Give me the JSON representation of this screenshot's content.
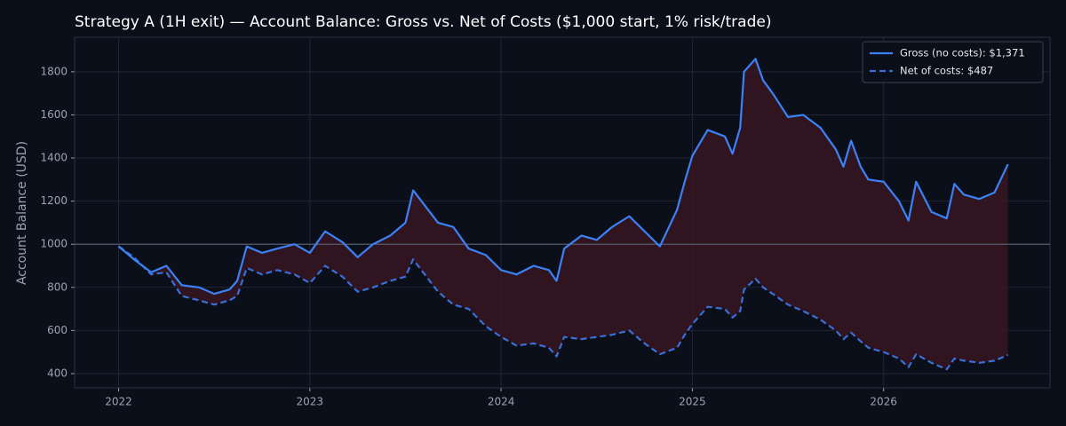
{
  "chart_data": {
    "type": "line",
    "title": "Strategy A (1H exit) — Account Balance: Gross vs. Net of Costs ($1,000 start, 1% risk/trade)",
    "y_label": "Account Balance (USD)",
    "x": [
      2022.0,
      2022.08,
      2022.17,
      2022.25,
      2022.33,
      2022.42,
      2022.5,
      2022.58,
      2022.62,
      2022.67,
      2022.75,
      2022.83,
      2022.92,
      2023.0,
      2023.08,
      2023.17,
      2023.25,
      2023.33,
      2023.42,
      2023.5,
      2023.54,
      2023.67,
      2023.75,
      2023.83,
      2023.92,
      2024.0,
      2024.08,
      2024.17,
      2024.25,
      2024.29,
      2024.33,
      2024.42,
      2024.5,
      2024.58,
      2024.67,
      2024.75,
      2024.83,
      2024.92,
      2024.96,
      2025.0,
      2025.08,
      2025.17,
      2025.21,
      2025.25,
      2025.27,
      2025.33,
      2025.37,
      2025.42,
      2025.5,
      2025.58,
      2025.67,
      2025.75,
      2025.79,
      2025.83,
      2025.88,
      2025.92,
      2026.0,
      2026.08,
      2026.13,
      2026.17,
      2026.25,
      2026.33,
      2026.37,
      2026.42,
      2026.5,
      2026.58,
      2026.65
    ],
    "series": [
      {
        "name": "Gross (no costs): $1,371",
        "color": "#3b82f6",
        "style": "solid",
        "values": [
          990,
          930,
          870,
          900,
          810,
          800,
          770,
          790,
          830,
          990,
          960,
          980,
          1000,
          960,
          1060,
          1010,
          940,
          1000,
          1040,
          1100,
          1250,
          1100,
          1080,
          980,
          950,
          880,
          860,
          900,
          880,
          830,
          980,
          1040,
          1020,
          1080,
          1130,
          1060,
          990,
          1160,
          1290,
          1410,
          1530,
          1500,
          1420,
          1540,
          1800,
          1860,
          1760,
          1700,
          1590,
          1600,
          1540,
          1440,
          1360,
          1480,
          1360,
          1300,
          1290,
          1200,
          1110,
          1290,
          1150,
          1120,
          1280,
          1230,
          1210,
          1240,
          1371
        ]
      },
      {
        "name": "Net of costs: $487",
        "color": "#3a6fd8",
        "style": "dashed",
        "values": [
          990,
          940,
          860,
          870,
          760,
          740,
          720,
          740,
          760,
          890,
          860,
          880,
          860,
          820,
          900,
          850,
          780,
          800,
          830,
          850,
          930,
          780,
          720,
          700,
          620,
          570,
          530,
          540,
          520,
          480,
          570,
          560,
          570,
          580,
          600,
          540,
          490,
          520,
          580,
          630,
          710,
          700,
          660,
          690,
          790,
          840,
          800,
          770,
          720,
          690,
          650,
          600,
          560,
          590,
          550,
          520,
          500,
          470,
          430,
          490,
          450,
          420,
          470,
          460,
          450,
          460,
          487
        ]
      }
    ],
    "fill_between": true,
    "fill_color": "#3a1520",
    "hline": 1000,
    "xlim": [
      2021.77,
      2026.87
    ],
    "xticks": [
      2022,
      2023,
      2024,
      2025,
      2026
    ],
    "ylim": [
      334,
      1960
    ],
    "yticks": [
      400,
      600,
      800,
      1000,
      1200,
      1400,
      1600,
      1800
    ],
    "grid": true,
    "legend": "upper right"
  }
}
